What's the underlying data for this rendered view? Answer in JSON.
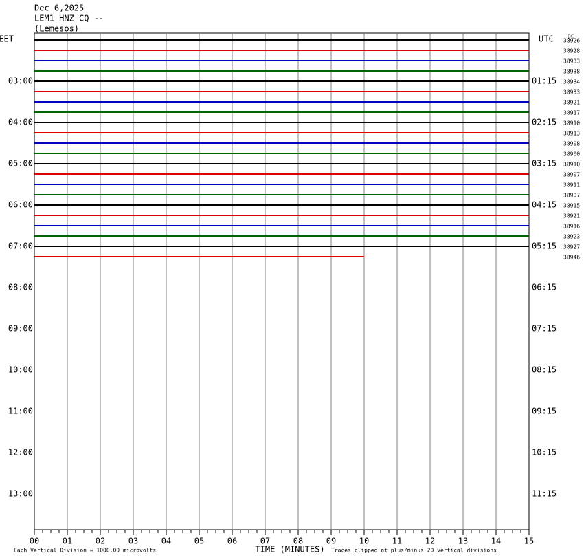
{
  "header": {
    "lines": [
      "Dec 6,2025",
      "LEM1 HNZ CQ --",
      "(Lemesos)"
    ]
  },
  "corner": "DC",
  "left_axis": {
    "title": "EET",
    "labels": [
      "03:00",
      "04:00",
      "05:00",
      "06:00",
      "07:00",
      "08:00",
      "09:00",
      "10:00",
      "11:00",
      "12:00",
      "13:00"
    ]
  },
  "right_axis": {
    "title": "UTC",
    "labels": [
      "01:15",
      "02:15",
      "03:15",
      "04:15",
      "05:15",
      "06:15",
      "07:15",
      "08:15",
      "09:15",
      "10:15",
      "11:15"
    ]
  },
  "traces": [
    {
      "label": "38926",
      "color": "#000000"
    },
    {
      "label": "38928",
      "color": "#e00000"
    },
    {
      "label": "38933",
      "color": "#0000c0"
    },
    {
      "label": "38938",
      "color": "#006400"
    },
    {
      "label": "38934",
      "color": "#000000"
    },
    {
      "label": "38933",
      "color": "#e00000"
    },
    {
      "label": "38921",
      "color": "#0000c0"
    },
    {
      "label": "38917",
      "color": "#006400"
    },
    {
      "label": "38910",
      "color": "#000000"
    },
    {
      "label": "38913",
      "color": "#e00000"
    },
    {
      "label": "38908",
      "color": "#0000c0"
    },
    {
      "label": "38900",
      "color": "#006400"
    },
    {
      "label": "38910",
      "color": "#000000"
    },
    {
      "label": "38907",
      "color": "#e00000"
    },
    {
      "label": "38911",
      "color": "#0000c0"
    },
    {
      "label": "38907",
      "color": "#006400"
    },
    {
      "label": "38915",
      "color": "#000000"
    },
    {
      "label": "38921",
      "color": "#e00000"
    },
    {
      "label": "38916",
      "color": "#0000c0"
    },
    {
      "label": "38923",
      "color": "#006400"
    },
    {
      "label": "38927",
      "color": "#000000"
    },
    {
      "label": "38946",
      "color": "#e00000",
      "end_minute": 10
    }
  ],
  "x_axis": {
    "title": "TIME (MINUTES)",
    "ticks": [
      "00",
      "01",
      "02",
      "03",
      "04",
      "05",
      "06",
      "07",
      "08",
      "09",
      "10",
      "11",
      "12",
      "13",
      "14",
      "15"
    ]
  },
  "footer": {
    "scale_note": "Each Vertical Division = 1000.00 microvolts",
    "clip_note": "Traces clipped at plus/minus 20 vertical divisions"
  }
}
